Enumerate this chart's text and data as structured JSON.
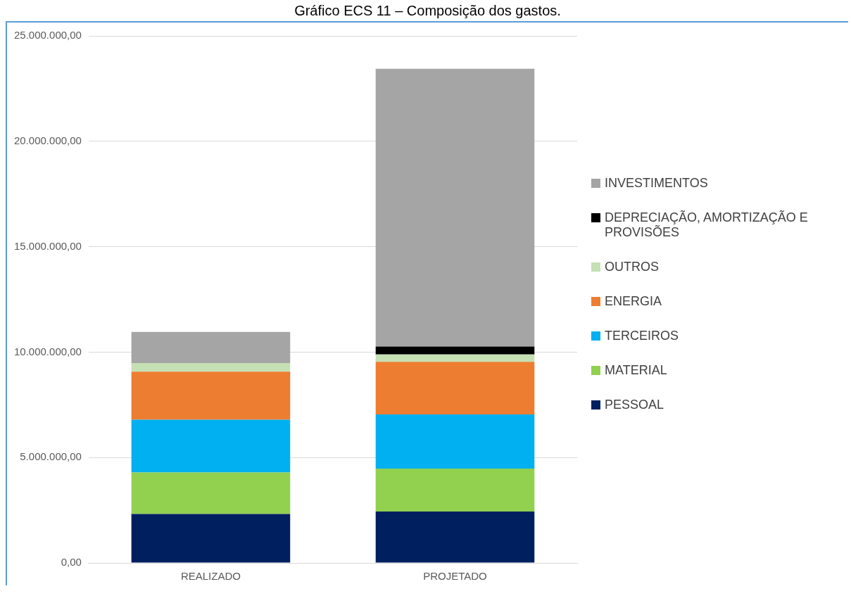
{
  "chart_data": {
    "type": "bar",
    "title": "Gráfico ECS 11 – Composição dos gastos.",
    "categories": [
      "REALIZADO",
      "PROJETADO"
    ],
    "stacked": true,
    "legend": "right",
    "grid": "y",
    "ylim": [
      0,
      25000000
    ],
    "yticks": [
      {
        "value": 0,
        "label": "0,00"
      },
      {
        "value": 5000000,
        "label": "5.000.000,00"
      },
      {
        "value": 10000000,
        "label": "10.000.000,00"
      },
      {
        "value": 15000000,
        "label": "15.000.000,00"
      },
      {
        "value": 20000000,
        "label": "20.000.000,00"
      },
      {
        "value": 25000000,
        "label": "25.000.000,00"
      }
    ],
    "series": [
      {
        "name": "PESSOAL",
        "color": "#001f5f",
        "values": [
          2320000,
          2440000
        ]
      },
      {
        "name": "MATERIAL",
        "color": "#92d050",
        "values": [
          1970000,
          2030000
        ]
      },
      {
        "name": "TERCEIROS",
        "color": "#00b0f0",
        "values": [
          2500000,
          2570000
        ]
      },
      {
        "name": "ENERGIA",
        "color": "#ed7d31",
        "values": [
          2280000,
          2500000
        ]
      },
      {
        "name": "OUTROS",
        "color": "#c5e0b4",
        "values": [
          410000,
          350000
        ]
      },
      {
        "name": "DEPRECIAÇÃO, AMORTIZAÇÃO E PROVISÕES",
        "color": "#000000",
        "values": [
          0,
          370000
        ]
      },
      {
        "name": "INVESTIMENTOS",
        "color": "#a5a5a5",
        "values": [
          1480000,
          13180000
        ]
      }
    ]
  }
}
